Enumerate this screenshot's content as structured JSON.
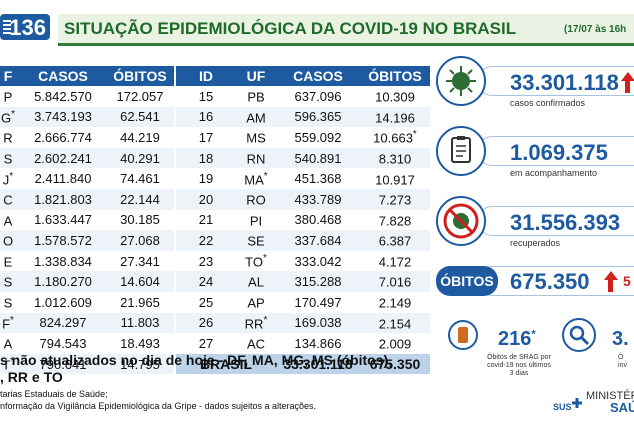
{
  "header": {
    "badge_number": "136",
    "title": "SITUAÇÃO EPIDEMIOLÓGICA DA COVID-19 NO BRASIL",
    "date": "(17/07 às 16h"
  },
  "left_table": {
    "columns": [
      "F",
      "CASOS",
      "ÓBITOS"
    ],
    "rows": [
      {
        "uf": "P",
        "casos": "5.842.570",
        "obitos": "172.057",
        "star": ""
      },
      {
        "uf": "G",
        "casos": "3.743.193",
        "obitos": "62.541",
        "star": "*"
      },
      {
        "uf": "R",
        "casos": "2.666.774",
        "obitos": "44.219",
        "star": ""
      },
      {
        "uf": "S",
        "casos": "2.602.241",
        "obitos": "40.291",
        "star": ""
      },
      {
        "uf": "J",
        "casos": "2.411.840",
        "obitos": "74.461",
        "star": "*"
      },
      {
        "uf": "C",
        "casos": "1.821.803",
        "obitos": "22.144",
        "star": ""
      },
      {
        "uf": "A",
        "casos": "1.633.447",
        "obitos": "30.185",
        "star": ""
      },
      {
        "uf": "O",
        "casos": "1.578.572",
        "obitos": "27.068",
        "star": ""
      },
      {
        "uf": "E",
        "casos": "1.338.834",
        "obitos": "27.341",
        "star": ""
      },
      {
        "uf": "S",
        "casos": "1.180.270",
        "obitos": "14.604",
        "star": ""
      },
      {
        "uf": "S",
        "casos": "1.012.609",
        "obitos": "21.965",
        "star": ""
      },
      {
        "uf": "F",
        "casos": "824.297",
        "obitos": "11.803",
        "star": "*"
      },
      {
        "uf": "A",
        "casos": "794.543",
        "obitos": "18.493",
        "star": ""
      },
      {
        "uf": "T",
        "casos": "790.641",
        "obitos": "14.795",
        "star": "*"
      }
    ]
  },
  "right_table": {
    "columns": [
      "ID",
      "UF",
      "CASOS",
      "ÓBITOS"
    ],
    "rows": [
      {
        "id": "15",
        "uf": "PB",
        "casos": "637.096",
        "obitos": "10.309",
        "uf_star": "",
        "ob_star": ""
      },
      {
        "id": "16",
        "uf": "AM",
        "casos": "596.365",
        "obitos": "14.196",
        "uf_star": "",
        "ob_star": ""
      },
      {
        "id": "17",
        "uf": "MS",
        "casos": "559.092",
        "obitos": "10.663",
        "uf_star": "",
        "ob_star": "*"
      },
      {
        "id": "18",
        "uf": "RN",
        "casos": "540.891",
        "obitos": "8.310",
        "uf_star": "",
        "ob_star": ""
      },
      {
        "id": "19",
        "uf": "MA",
        "casos": "451.368",
        "obitos": "10.917",
        "uf_star": "*",
        "ob_star": ""
      },
      {
        "id": "20",
        "uf": "RO",
        "casos": "433.789",
        "obitos": "7.273",
        "uf_star": "",
        "ob_star": ""
      },
      {
        "id": "21",
        "uf": "PI",
        "casos": "380.468",
        "obitos": "7.828",
        "uf_star": "",
        "ob_star": ""
      },
      {
        "id": "22",
        "uf": "SE",
        "casos": "337.684",
        "obitos": "6.387",
        "uf_star": "",
        "ob_star": ""
      },
      {
        "id": "23",
        "uf": "TO",
        "casos": "333.042",
        "obitos": "4.172",
        "uf_star": "*",
        "ob_star": ""
      },
      {
        "id": "24",
        "uf": "AL",
        "casos": "315.288",
        "obitos": "7.016",
        "uf_star": "",
        "ob_star": ""
      },
      {
        "id": "25",
        "uf": "AP",
        "casos": "170.497",
        "obitos": "2.149",
        "uf_star": "",
        "ob_star": ""
      },
      {
        "id": "26",
        "uf": "RR",
        "casos": "169.038",
        "obitos": "2.154",
        "uf_star": "*",
        "ob_star": ""
      },
      {
        "id": "27",
        "uf": "AC",
        "casos": "134.866",
        "obitos": "2.009",
        "uf_star": "",
        "ob_star": ""
      }
    ],
    "total": {
      "label": "BRASIL",
      "casos": "33.301.118",
      "obitos": "675.350"
    }
  },
  "stats": {
    "confirmed": {
      "value": "33.301.118",
      "label": "casos confirmados",
      "icon": "virus-icon"
    },
    "monitoring": {
      "value": "1.069.375",
      "label": "em acompanhamento",
      "icon": "clipboard-icon"
    },
    "recovered": {
      "value": "31.556.393",
      "label": "recuperados",
      "icon": "no-virus-icon"
    },
    "deaths": {
      "tag": "ÓBITOS",
      "value": "675.350",
      "extra": "5"
    },
    "srag": {
      "value": "216",
      "star": "*",
      "label_line1": "Óbitos de SRAG por",
      "label_line2": "covid-19 nos últimos",
      "label_line3": "3 dias",
      "icon": "coffin-icon"
    },
    "investigation": {
      "value": "3.",
      "label_line1": "Ó",
      "label_line2": "inv",
      "icon": "magnifier-icon"
    }
  },
  "footer": {
    "note_line1": "s não atualizados no dia de hoje - DF, MA, MG, MS (óbitos),",
    "note_line2": ", RR e TO",
    "source_line1": "tarias Estaduais de Saúde;",
    "source_line2": "nformação da Vigilância Epidemiológica da Gripe - dados sujeitos a alterações.",
    "sus": "SUS",
    "ministry_line1": "MINISTÉRIO D",
    "ministry_line2": "SAÚ"
  },
  "colors": {
    "primary": "#1d5a9f",
    "title_green": "#1e6b2a",
    "alert_red": "#d0201e"
  }
}
